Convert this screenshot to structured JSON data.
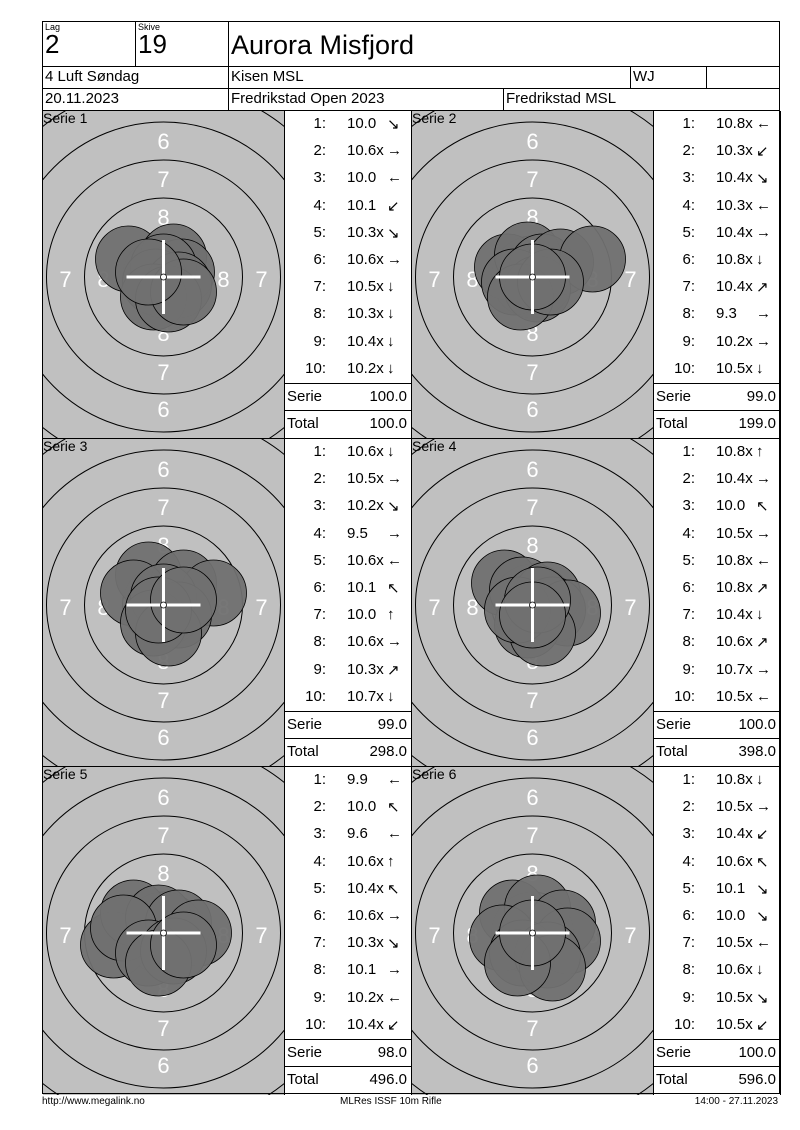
{
  "header": {
    "lag_label": "Lag",
    "lag_value": "2",
    "skive_label": "Skive",
    "skive_value": "19",
    "shooter_name": "Aurora Misfjord",
    "class_name": "4 Luft Søndag",
    "club": "Kisen MSL",
    "weapon": "WJ",
    "date": "20.11.2023",
    "event": "Fredrikstad Open 2023",
    "organizer": "Fredrikstad MSL"
  },
  "labels": {
    "serie": "Serie",
    "total": "Total"
  },
  "series": [
    {
      "title": "Serie 1",
      "serie_sum": "100.0",
      "total": "100.0",
      "shots": [
        {
          "n": "1:",
          "v": "10.0",
          "dir": "down-right"
        },
        {
          "n": "2:",
          "v": "10.6x",
          "dir": "right"
        },
        {
          "n": "3:",
          "v": "10.0",
          "dir": "left"
        },
        {
          "n": "4:",
          "v": "10.1",
          "dir": "down-left"
        },
        {
          "n": "5:",
          "v": "10.3x",
          "dir": "down-right"
        },
        {
          "n": "6:",
          "v": "10.6x",
          "dir": "right"
        },
        {
          "n": "7:",
          "v": "10.5x",
          "dir": "down"
        },
        {
          "n": "8:",
          "v": "10.3x",
          "dir": "down"
        },
        {
          "n": "9:",
          "v": "10.4x",
          "dir": "down"
        },
        {
          "n": "10:",
          "v": "10.2x",
          "dir": "down"
        }
      ]
    },
    {
      "title": "Serie 2",
      "serie_sum": "99.0",
      "total": "199.0",
      "shots": [
        {
          "n": "1:",
          "v": "10.8x",
          "dir": "left"
        },
        {
          "n": "2:",
          "v": "10.3x",
          "dir": "down-left"
        },
        {
          "n": "3:",
          "v": "10.4x",
          "dir": "down-right"
        },
        {
          "n": "4:",
          "v": "10.3x",
          "dir": "left"
        },
        {
          "n": "5:",
          "v": "10.4x",
          "dir": "right"
        },
        {
          "n": "6:",
          "v": "10.8x",
          "dir": "down"
        },
        {
          "n": "7:",
          "v": "10.4x",
          "dir": "up-right"
        },
        {
          "n": "8:",
          "v": "9.3",
          "dir": "right"
        },
        {
          "n": "9:",
          "v": "10.2x",
          "dir": "right"
        },
        {
          "n": "10:",
          "v": "10.5x",
          "dir": "down"
        }
      ]
    },
    {
      "title": "Serie 3",
      "serie_sum": "99.0",
      "total": "298.0",
      "shots": [
        {
          "n": "1:",
          "v": "10.6x",
          "dir": "down"
        },
        {
          "n": "2:",
          "v": "10.5x",
          "dir": "right"
        },
        {
          "n": "3:",
          "v": "10.2x",
          "dir": "down-right"
        },
        {
          "n": "4:",
          "v": "9.5",
          "dir": "right"
        },
        {
          "n": "5:",
          "v": "10.6x",
          "dir": "left"
        },
        {
          "n": "6:",
          "v": "10.1",
          "dir": "up-left"
        },
        {
          "n": "7:",
          "v": "10.0",
          "dir": "up"
        },
        {
          "n": "8:",
          "v": "10.6x",
          "dir": "right"
        },
        {
          "n": "9:",
          "v": "10.3x",
          "dir": "up-right"
        },
        {
          "n": "10:",
          "v": "10.7x",
          "dir": "down"
        }
      ]
    },
    {
      "title": "Serie 4",
      "serie_sum": "100.0",
      "total": "398.0",
      "shots": [
        {
          "n": "1:",
          "v": "10.8x",
          "dir": "up"
        },
        {
          "n": "2:",
          "v": "10.4x",
          "dir": "right"
        },
        {
          "n": "3:",
          "v": "10.0",
          "dir": "up-left"
        },
        {
          "n": "4:",
          "v": "10.5x",
          "dir": "right"
        },
        {
          "n": "5:",
          "v": "10.8x",
          "dir": "left"
        },
        {
          "n": "6:",
          "v": "10.8x",
          "dir": "up-right"
        },
        {
          "n": "7:",
          "v": "10.4x",
          "dir": "down"
        },
        {
          "n": "8:",
          "v": "10.6x",
          "dir": "up-right"
        },
        {
          "n": "9:",
          "v": "10.7x",
          "dir": "right"
        },
        {
          "n": "10:",
          "v": "10.5x",
          "dir": "left"
        }
      ]
    },
    {
      "title": "Serie 5",
      "serie_sum": "98.0",
      "total": "496.0",
      "shots": [
        {
          "n": "1:",
          "v": "9.9",
          "dir": "left"
        },
        {
          "n": "2:",
          "v": "10.0",
          "dir": "up-left"
        },
        {
          "n": "3:",
          "v": "9.6",
          "dir": "left"
        },
        {
          "n": "4:",
          "v": "10.6x",
          "dir": "up"
        },
        {
          "n": "5:",
          "v": "10.4x",
          "dir": "up-left"
        },
        {
          "n": "6:",
          "v": "10.6x",
          "dir": "right"
        },
        {
          "n": "7:",
          "v": "10.3x",
          "dir": "down-right"
        },
        {
          "n": "8:",
          "v": "10.1",
          "dir": "right"
        },
        {
          "n": "9:",
          "v": "10.2x",
          "dir": "left"
        },
        {
          "n": "10:",
          "v": "10.4x",
          "dir": "down-left"
        }
      ]
    },
    {
      "title": "Serie 6",
      "serie_sum": "100.0",
      "total": "596.0",
      "shots": [
        {
          "n": "1:",
          "v": "10.8x",
          "dir": "down"
        },
        {
          "n": "2:",
          "v": "10.5x",
          "dir": "right"
        },
        {
          "n": "3:",
          "v": "10.4x",
          "dir": "down-left"
        },
        {
          "n": "4:",
          "v": "10.6x",
          "dir": "up-left"
        },
        {
          "n": "5:",
          "v": "10.1",
          "dir": "down-right"
        },
        {
          "n": "6:",
          "v": "10.0",
          "dir": "down-right"
        },
        {
          "n": "7:",
          "v": "10.5x",
          "dir": "left"
        },
        {
          "n": "8:",
          "v": "10.6x",
          "dir": "down"
        },
        {
          "n": "9:",
          "v": "10.5x",
          "dir": "down-right"
        },
        {
          "n": "10:",
          "v": "10.5x",
          "dir": "down-left"
        }
      ]
    }
  ],
  "ring_numbers": [
    "6",
    "7",
    "8"
  ],
  "colors": {
    "target_bg": "#c0c0c0",
    "shot_fill": "#707070",
    "ring": "#000000",
    "cross": "#ffffff"
  },
  "footer": {
    "url": "http://www.megalink.no",
    "program": "MLRes ISSF 10m Rifle",
    "timestamp": "14:00 - 27.11.2023"
  }
}
